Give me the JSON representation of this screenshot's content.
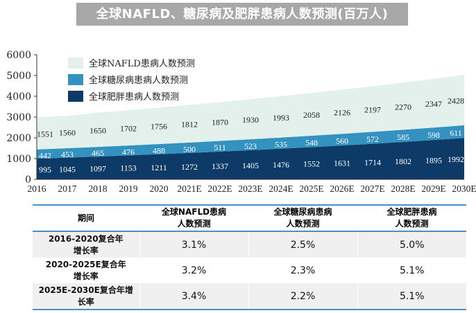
{
  "title": "全球NAFLD、糖尿病及肥胖患病人数预测(百万人)",
  "chart_data": {
    "type": "area",
    "stacked": true,
    "title": "全球NAFLD、糖尿病及肥胖患病人数预测(百万人)",
    "xlabel": "",
    "ylabel": "",
    "ylim": [
      0,
      6000
    ],
    "yticks": [
      0,
      1000,
      2000,
      3000,
      4000,
      5000,
      6000
    ],
    "legend_position": "top-left",
    "categories": [
      "2016",
      "2017",
      "2018",
      "2019",
      "2020",
      "2021E",
      "2022E",
      "2023E",
      "2024E",
      "2025E",
      "2026E",
      "2027E",
      "2028E",
      "2029E",
      "2030E"
    ],
    "series": [
      {
        "name": "全球肥胖患病人数预测",
        "color": "#0d3a66",
        "values": [
          995,
          1045,
          1097,
          1153,
          1211,
          1272,
          1337,
          1405,
          1476,
          1552,
          1631,
          1714,
          1802,
          1895,
          1992
        ]
      },
      {
        "name": "全球糖尿病患病人数预测",
        "color": "#3392bf",
        "values": [
          442,
          453,
          465,
          476,
          488,
          500,
          511,
          523,
          535,
          548,
          560,
          572,
          585,
          598,
          611
        ]
      },
      {
        "name": "全球NAFLD患病人数预测",
        "color": "#e3f0ec",
        "values": [
          1551,
          1560,
          1650,
          1702,
          1756,
          1812,
          1870,
          1930,
          1993,
          2058,
          2126,
          2197,
          2270,
          2347,
          2428
        ]
      }
    ],
    "legend": [
      "全球NAFLD患病人数预测",
      "全球糖尿病患病人数预测",
      "全球肥胖患病人数预测"
    ]
  },
  "table": {
    "headers": [
      [
        "期间"
      ],
      [
        "全球NAFLD患病",
        "人数预测"
      ],
      [
        "全球糖尿病患病",
        "人数预测"
      ],
      [
        "全球肥胖患病",
        "人数预测"
      ]
    ],
    "rows": [
      {
        "period": [
          "2016-2020复合年",
          "增长率"
        ],
        "values": [
          "3.1%",
          "2.5%",
          "5.0%"
        ]
      },
      {
        "period": [
          "2020-2025E复合年",
          "增长率"
        ],
        "values": [
          "3.2%",
          "2.3%",
          "5.1%"
        ]
      },
      {
        "period": [
          "2025E-2030E复合年增",
          "长率"
        ],
        "values": [
          "3.4%",
          "2.2%",
          "5.1%"
        ]
      }
    ]
  }
}
